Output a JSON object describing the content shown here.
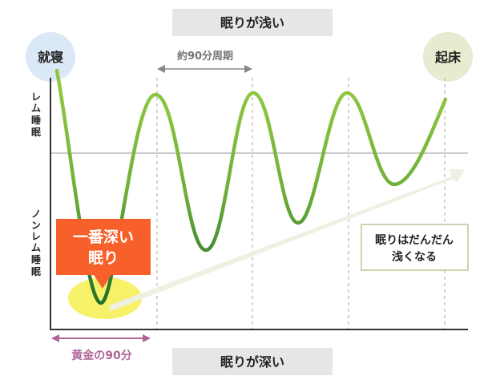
{
  "labels": {
    "shallow": "眠りが浅い",
    "deep": "眠りが深い",
    "bedtime": "就寝",
    "wake": "起床",
    "cycle": "約90分周期",
    "rem_chars": [
      "レ",
      "ム",
      "睡",
      "眠"
    ],
    "nonrem_chars": [
      "ノ",
      "ン",
      "レ",
      "ム",
      "睡",
      "眠"
    ],
    "deepest_line1": "一番深い",
    "deepest_line2": "眠り",
    "golden": "黄金の90分",
    "trend_line1": "眠りはだんだん",
    "trend_line2": "浅くなる"
  },
  "colors": {
    "curve_light": "#8dc63f",
    "curve_dark": "#2e7d32",
    "highlight": "#f6ef5a",
    "callout": "#f7602a",
    "bedtime_circle": "#dbe9f7",
    "wake_circle": "#e5eccf",
    "trend_arrow": "#eef1e2",
    "golden": "#b06496",
    "header_box": "#e6e6e6"
  }
}
